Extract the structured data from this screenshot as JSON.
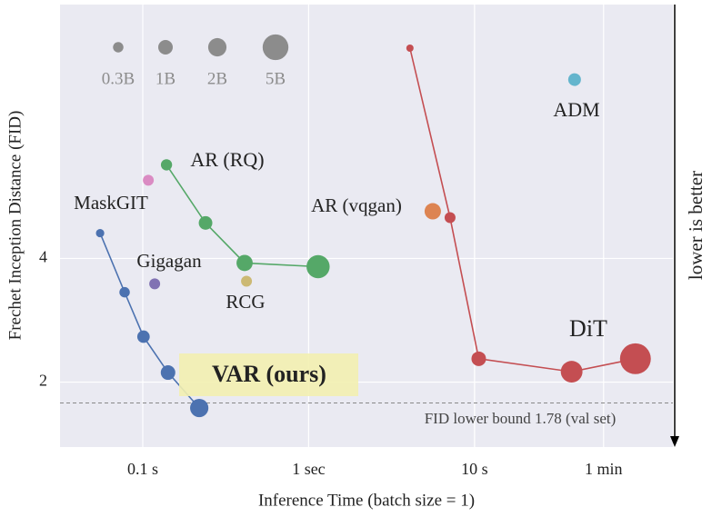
{
  "chart_data": {
    "type": "scatter",
    "x_label": "Inference Time (batch size = 1)",
    "y_label": "Frechet Inception Distance (FID)",
    "x_log": true,
    "y_log": true,
    "grid": true,
    "xlim": [
      0.0317,
      157
    ],
    "ylim": [
      1.39,
      16.6
    ],
    "xticks": [
      {
        "value": 0.1,
        "label": "0.1 s"
      },
      {
        "value": 1,
        "label": "1 sec"
      },
      {
        "value": 10,
        "label": "10 s"
      },
      {
        "value": 60,
        "label": "1 min"
      }
    ],
    "yticks": [
      2,
      4
    ],
    "hline": {
      "value": 1.78,
      "label": "FID lower bound 1.78 (val set)"
    },
    "side_note": "lower is better",
    "size_legend": [
      {
        "value": 0.3,
        "label": "0.3B"
      },
      {
        "value": 1,
        "label": "1B"
      },
      {
        "value": 2,
        "label": "2B"
      },
      {
        "value": 5,
        "label": "5B"
      }
    ],
    "series": [
      {
        "name": "VAR (ours)",
        "color": "#4c72b0",
        "x": [
          0.0553,
          0.0777,
          0.101,
          0.142,
          0.219
        ],
        "values": [
          4.61,
          3.31,
          2.58,
          2.11,
          1.73
        ],
        "sizes": [
          0.1,
          0.3,
          0.6,
          1,
          2
        ],
        "line": true
      },
      {
        "name": "AR (RQ)",
        "color": "#55a868",
        "x": [
          0.139,
          0.239,
          0.411,
          1.14
        ],
        "values": [
          6.76,
          4.88,
          3.9,
          3.82
        ],
        "sizes": [
          0.4,
          0.8,
          1.4,
          3.8
        ],
        "line": true
      },
      {
        "name": "DiT",
        "color": "#c44e52",
        "x": [
          4.08,
          7.12,
          10.6,
          38.5,
          93.3
        ],
        "values": [
          13.0,
          5.03,
          2.28,
          2.12,
          2.28
        ],
        "sizes": [
          0.04,
          0.36,
          1,
          3.2,
          7.8
        ],
        "line": true
      },
      {
        "name": "MaskGIT",
        "color": "#da8bc3",
        "x": [
          0.108
        ],
        "values": [
          6.2
        ],
        "sizes": [
          0.36
        ],
        "line": false
      },
      {
        "name": "Gigagan",
        "color": "#8172b3",
        "x": [
          0.118
        ],
        "values": [
          3.47
        ],
        "sizes": [
          0.36
        ],
        "line": false
      },
      {
        "name": "RCG",
        "color": "#ccb974",
        "x": [
          0.422
        ],
        "values": [
          3.52
        ],
        "sizes": [
          0.36
        ],
        "line": false
      },
      {
        "name": "AR (vqgan)",
        "color": "#dd8452",
        "x": [
          5.6
        ],
        "values": [
          5.21
        ],
        "sizes": [
          1.44
        ],
        "line": false
      },
      {
        "name": "ADM",
        "color": "#64b5cd",
        "x": [
          40.1
        ],
        "values": [
          10.9
        ],
        "sizes": [
          0.64
        ],
        "line": false
      }
    ]
  }
}
